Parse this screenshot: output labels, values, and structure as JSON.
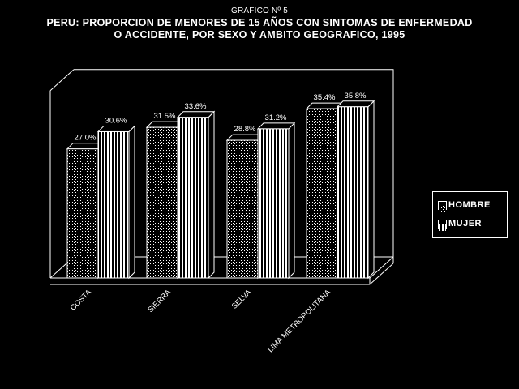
{
  "header": {
    "ref": "GRAFICO Nº 5",
    "title_line1": "PERU: PROPORCION DE MENORES DE 15 AÑOS CON SINTOMAS DE ENFERMEDAD",
    "title_line2": "O ACCIDENTE, POR SEXO Y AMBITO GEOGRAFICO, 1995"
  },
  "legend": {
    "placement": "right",
    "items": [
      {
        "label": "HOMBRE",
        "pattern": "dots"
      },
      {
        "label": "MUJER",
        "pattern": "vertical-lines"
      }
    ]
  },
  "chart_data": {
    "type": "bar",
    "style": "3d-clustered",
    "title": "PERU: PROPORCION DE MENORES DE 15 AÑOS CON SINTOMAS DE ENFERMEDAD O ACCIDENTE, POR SEXO Y AMBITO GEOGRAFICO, 1995",
    "categories": [
      "COSTA",
      "SIERRA",
      "SELVA",
      "LIMA METROPOLITANA"
    ],
    "series": [
      {
        "name": "HOMBRE",
        "values": [
          27.0,
          31.5,
          28.8,
          35.4
        ],
        "labels": [
          "27.0%",
          "31.5%",
          "28.8%",
          "35.4%"
        ]
      },
      {
        "name": "MUJER",
        "values": [
          30.6,
          33.6,
          31.2,
          35.8
        ],
        "labels": [
          "30.6%",
          "33.6%",
          "31.2%",
          "35.8%"
        ]
      }
    ],
    "ylim": [
      0,
      40
    ],
    "grid": false,
    "colors": {
      "background": "#000000",
      "foreground": "#ffffff"
    }
  }
}
